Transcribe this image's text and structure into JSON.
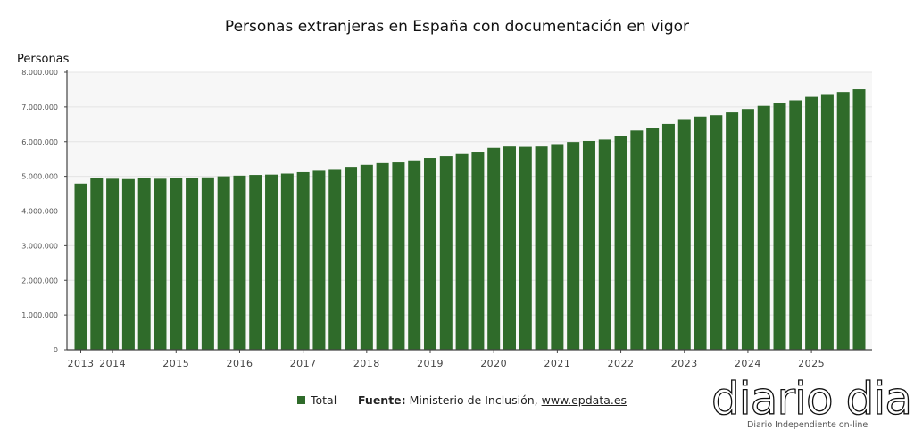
{
  "chart_data": {
    "type": "bar",
    "title": "Personas extranjeras en España con documentación en vigor",
    "ylabel": "Personas",
    "xlabel": "",
    "ylim": [
      0,
      8000000
    ],
    "yticks": [
      "0",
      "1.000.000",
      "2.000.000",
      "3.000.000",
      "4.000.000",
      "5.000.000",
      "6.000.000",
      "7.000.000",
      "8.000.000"
    ],
    "grid": true,
    "legend_position": "bottom",
    "color": "#2f6b2a",
    "categories": [
      "2013",
      "",
      "2014",
      "",
      "",
      "",
      "2015",
      "",
      "",
      "",
      "2016",
      "",
      "",
      "",
      "2017",
      "",
      "",
      "",
      "2018",
      "",
      "",
      "",
      "2019",
      "",
      "",
      "",
      "2020",
      "",
      "",
      "",
      "2021",
      "",
      "",
      "",
      "2022",
      "",
      "",
      "",
      "2023",
      "",
      "",
      "",
      "2024",
      "",
      "",
      "",
      "2025",
      "",
      "",
      ""
    ],
    "series": [
      {
        "name": "Total",
        "values": [
          4790000,
          4940000,
          4930000,
          4920000,
          4950000,
          4930000,
          4950000,
          4940000,
          4970000,
          5000000,
          5020000,
          5040000,
          5050000,
          5080000,
          5120000,
          5160000,
          5210000,
          5270000,
          5330000,
          5380000,
          5400000,
          5460000,
          5530000,
          5580000,
          5640000,
          5710000,
          5820000,
          5860000,
          5850000,
          5860000,
          5930000,
          5990000,
          6020000,
          6060000,
          6160000,
          6320000,
          6400000,
          6510000,
          6650000,
          6720000,
          6760000,
          6840000,
          6940000,
          7030000,
          7120000,
          7190000,
          7290000,
          7370000,
          7430000,
          7510000
        ]
      }
    ]
  },
  "legend": {
    "label": "Total"
  },
  "source": {
    "prefix": "Fuente:",
    "text": " Ministerio de Inclusión, ",
    "link": "www.epdata.es"
  },
  "logo": {
    "name": "diario dia",
    "tagline": "Diario Independiente on-line"
  }
}
